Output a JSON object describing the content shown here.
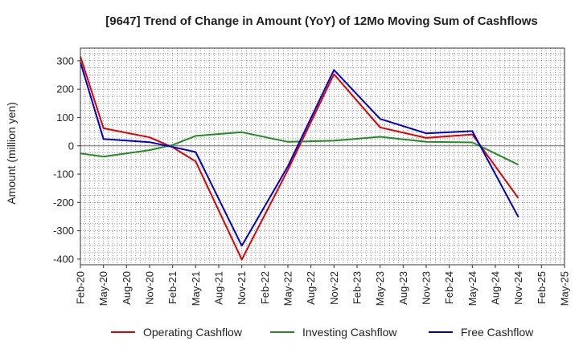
{
  "chart_data": {
    "type": "line",
    "title": "[9647]  Trend of Change in Amount (YoY) of 12Mo Moving Sum of Cashflows",
    "xlabel": "",
    "ylabel": "Amount (million yen)",
    "ylim": [
      -420,
      345
    ],
    "yticks": [
      300,
      200,
      100,
      0,
      -100,
      -200,
      -300,
      -400
    ],
    "categories": [
      "Feb-20",
      "May-20",
      "Aug-20",
      "Nov-20",
      "Feb-21",
      "May-21",
      "Aug-21",
      "Nov-21",
      "Feb-22",
      "May-22",
      "Aug-22",
      "Nov-22",
      "Feb-23",
      "May-23",
      "Aug-23",
      "Nov-23",
      "Feb-24",
      "May-24",
      "Aug-24",
      "Nov-24",
      "Feb-25",
      "May-25"
    ],
    "grid": true,
    "legend_position": "bottom",
    "series": [
      {
        "name": "Operating Cashflow",
        "color": "#e00000",
        "values": [
          315,
          62,
          null,
          30,
          -5,
          -55,
          null,
          -402,
          null,
          -85,
          null,
          253,
          null,
          65,
          null,
          28,
          null,
          40,
          null,
          -185,
          null,
          null
        ]
      },
      {
        "name": "Investing Cashflow",
        "color": "#228b22",
        "values": [
          -27,
          -38,
          null,
          -15,
          3,
          35,
          null,
          48,
          null,
          14,
          null,
          18,
          null,
          32,
          null,
          14,
          null,
          12,
          null,
          -67,
          null,
          null
        ]
      },
      {
        "name": "Free Cashflow",
        "color": "#0000cc",
        "values": [
          295,
          24,
          null,
          13,
          -4,
          -22,
          null,
          -353,
          null,
          -72,
          null,
          268,
          null,
          95,
          null,
          44,
          null,
          52,
          null,
          -252,
          null,
          null
        ]
      }
    ]
  }
}
